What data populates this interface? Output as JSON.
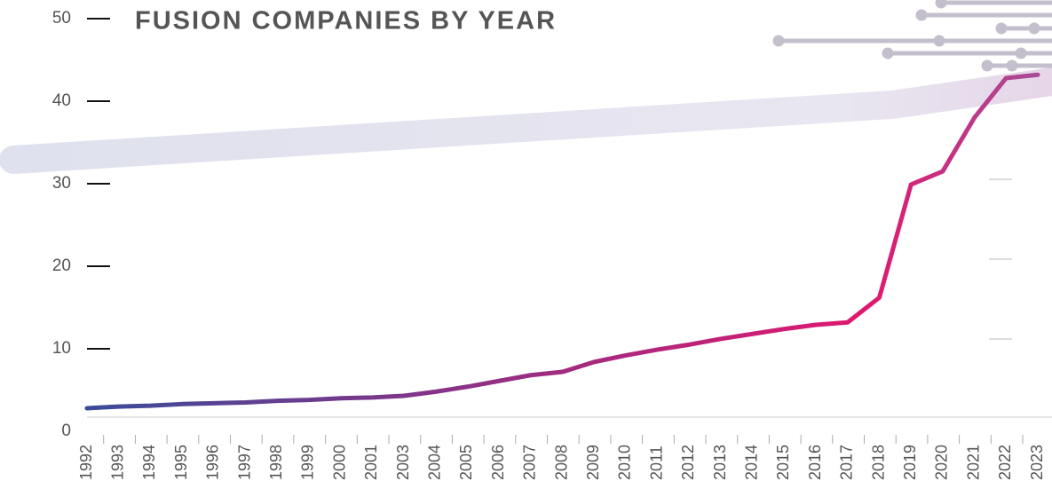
{
  "chart_data": {
    "type": "line",
    "title": "FUSION COMPANIES BY YEAR",
    "categories": [
      "1992",
      "1993",
      "1994",
      "1995",
      "1996",
      "1997",
      "1998",
      "1999",
      "2000",
      "2001",
      "2003",
      "2004",
      "2005",
      "2006",
      "2007",
      "2008",
      "2009",
      "2010",
      "2011",
      "2012",
      "2013",
      "2014",
      "2015",
      "2016",
      "2017",
      "2018",
      "2019",
      "2020",
      "2021",
      "2022",
      "2023"
    ],
    "series": [
      {
        "colors": [
          "#3b4b9b",
          "#e2176f",
          "#a64d97"
        ],
        "values": [
          2.8,
          3.0,
          3.1,
          3.3,
          3.4,
          3.5,
          3.7,
          3.8,
          4.0,
          4.1,
          4.3,
          4.8,
          5.4,
          6.1,
          6.8,
          7.2,
          8.4,
          9.2,
          9.9,
          10.5,
          11.2,
          11.8,
          12.4,
          12.9,
          13.2,
          16.2,
          29.9,
          31.5,
          38,
          42.8,
          43.2
        ]
      }
    ],
    "ylim": [
      0,
      50
    ],
    "yticks": [
      0,
      10,
      20,
      30,
      40,
      50
    ]
  }
}
